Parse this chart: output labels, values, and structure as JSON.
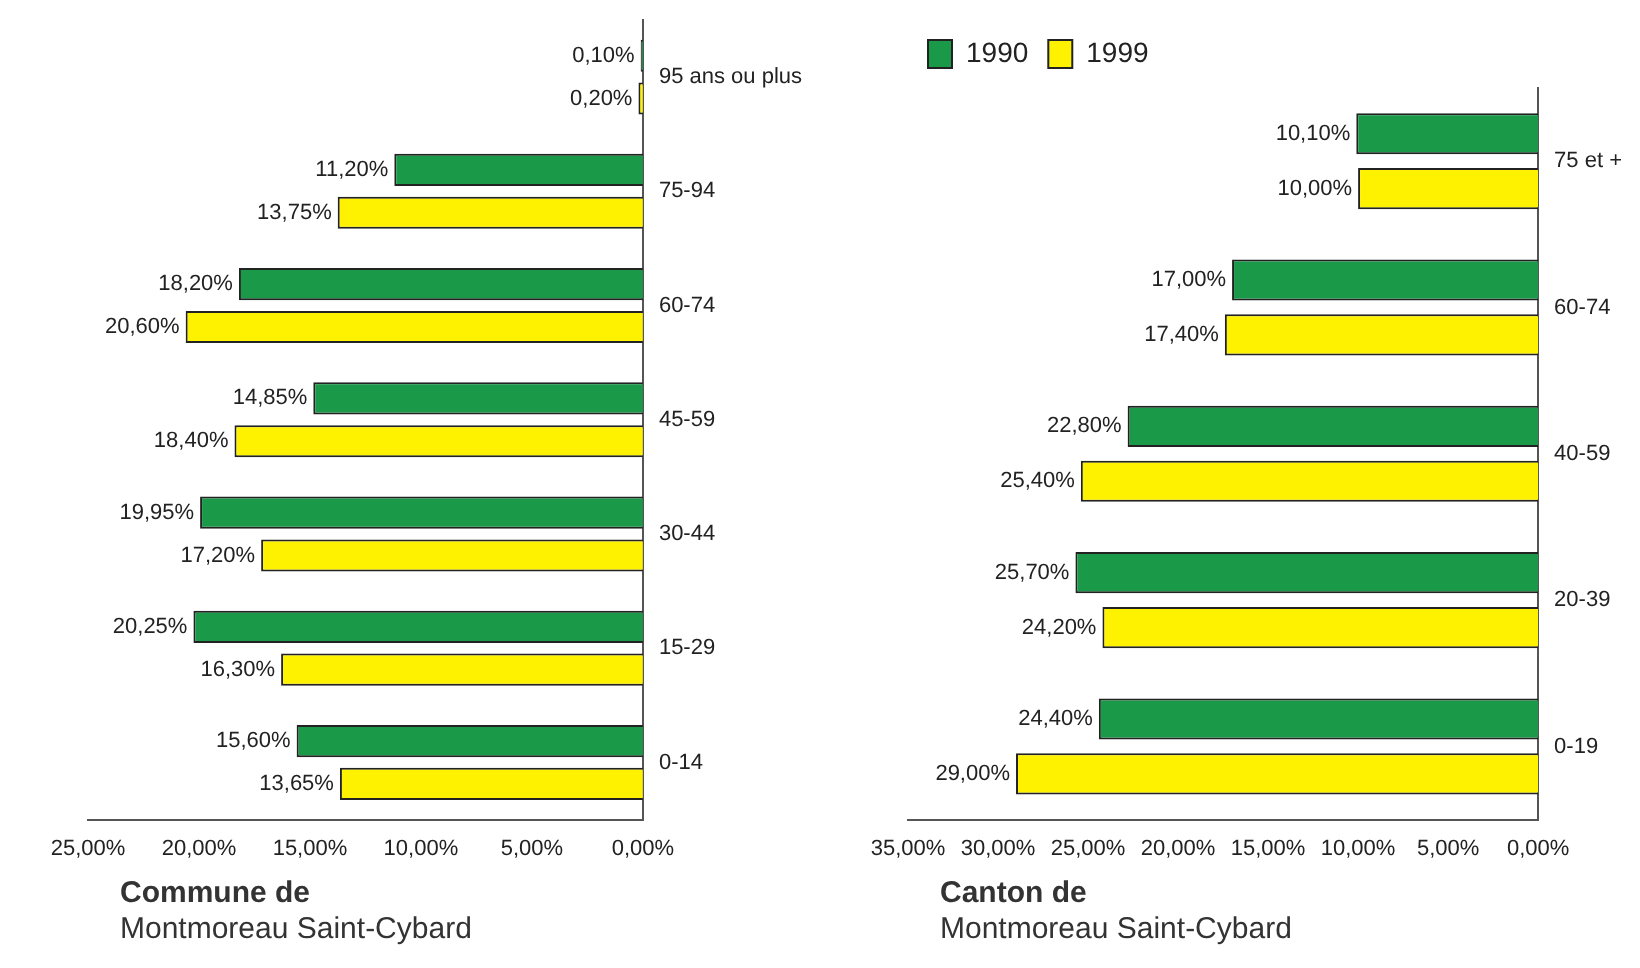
{
  "chart_data": [
    {
      "type": "bar",
      "orientation": "horizontal",
      "title": "Commune de",
      "subtitle": "Montmoreau Saint-Cybard",
      "categories": [
        "95 ans ou plus",
        "75-94",
        "60-74",
        "45-59",
        "30-44",
        "15-29",
        "0-14"
      ],
      "series": [
        {
          "color": "#1a9a48",
          "values": [
            0.1,
            11.2,
            18.2,
            14.85,
            19.95,
            20.25,
            15.6
          ],
          "value_labels": [
            "0,10%",
            "11,20%",
            "18,20%",
            "14,85%",
            "19,95%",
            "20,25%",
            "15,60%"
          ]
        },
        {
          "color": "#fff200",
          "values": [
            0.2,
            13.75,
            20.6,
            18.4,
            17.2,
            16.3,
            13.65
          ],
          "value_labels": [
            "0,20%",
            "13,75%",
            "20,60%",
            "18,40%",
            "17,20%",
            "16,30%",
            "13,65%"
          ]
        }
      ],
      "xlim": [
        25,
        0
      ],
      "xticks": [
        {
          "value": 25,
          "label": "25,00%"
        },
        {
          "value": 20,
          "label": "20,00%"
        },
        {
          "value": 15,
          "label": "15,00%"
        },
        {
          "value": 10,
          "label": "10,00%"
        },
        {
          "value": 5,
          "label": "5,00%"
        },
        {
          "value": 0,
          "label": "0,00%"
        }
      ],
      "grid": false
    },
    {
      "type": "bar",
      "orientation": "horizontal",
      "title": "Canton de",
      "subtitle": "Montmoreau Saint-Cybard",
      "categories": [
        "75 et +",
        "60-74",
        "40-59",
        "20-39",
        "0-19"
      ],
      "series": [
        {
          "name": "1990",
          "color": "#1a9a48",
          "values": [
            10.1,
            17.0,
            22.8,
            25.7,
            24.4
          ],
          "value_labels": [
            "10,10%",
            "17,00%",
            "22,80%",
            "25,70%",
            "24,40%"
          ]
        },
        {
          "name": "1999",
          "color": "#fff200",
          "values": [
            10.0,
            17.4,
            25.4,
            24.2,
            29.0
          ],
          "value_labels": [
            "10,00%",
            "17,40%",
            "25,40%",
            "24,20%",
            "29,00%"
          ]
        }
      ],
      "xlim": [
        35,
        0
      ],
      "xticks": [
        {
          "value": 35,
          "label": "35,00%"
        },
        {
          "value": 30,
          "label": "30,00%"
        },
        {
          "value": 25,
          "label": "25,00%"
        },
        {
          "value": 20,
          "label": "20,00%"
        },
        {
          "value": 15,
          "label": "15,00%"
        },
        {
          "value": 10,
          "label": "10,00%"
        },
        {
          "value": 5,
          "label": "5,00%"
        },
        {
          "value": 0,
          "label": "0,00%"
        }
      ],
      "grid": false,
      "legend": "top left"
    }
  ]
}
